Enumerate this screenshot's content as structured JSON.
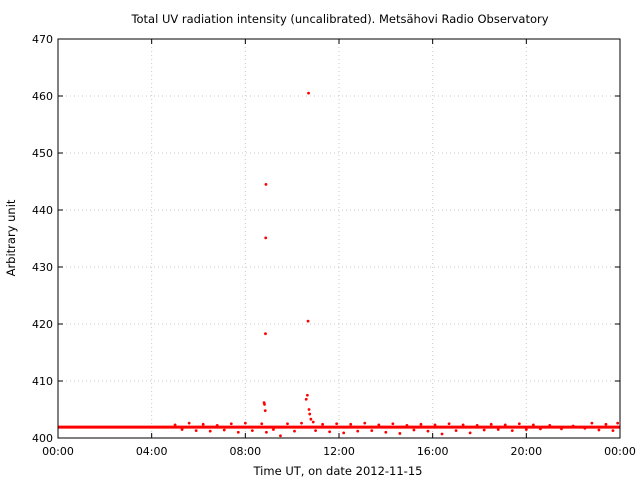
{
  "chart_data": {
    "type": "scatter",
    "title": "Total UV radiation intensity (uncalibrated). Metsähovi Radio Observatory",
    "xlabel": "Time UT, on date 2012-11-15",
    "ylabel": "Arbitrary unit",
    "x_unit": "hours UT",
    "xlim": [
      0,
      24
    ],
    "ylim": [
      400,
      470
    ],
    "x_ticks": [
      {
        "value": 0,
        "label": "00:00"
      },
      {
        "value": 4,
        "label": "04:00"
      },
      {
        "value": 8,
        "label": "08:00"
      },
      {
        "value": 12,
        "label": "12:00"
      },
      {
        "value": 16,
        "label": "16:00"
      },
      {
        "value": 20,
        "label": "20:00"
      },
      {
        "value": 24,
        "label": "00:00"
      }
    ],
    "y_ticks": [
      {
        "value": 400,
        "label": "400"
      },
      {
        "value": 410,
        "label": "410"
      },
      {
        "value": 420,
        "label": "420"
      },
      {
        "value": 430,
        "label": "430"
      },
      {
        "value": 440,
        "label": "440"
      },
      {
        "value": 450,
        "label": "450"
      },
      {
        "value": 460,
        "label": "460"
      },
      {
        "value": 470,
        "label": "470"
      }
    ],
    "grid": true,
    "marker_color": "#ff0000",
    "baseline": {
      "value": 401.9,
      "x_range": [
        0,
        24
      ]
    },
    "series": [
      {
        "values": [
          {
            "x": 5.0,
            "y": 402.3
          },
          {
            "x": 5.3,
            "y": 401.5
          },
          {
            "x": 5.6,
            "y": 402.6
          },
          {
            "x": 5.9,
            "y": 401.3
          },
          {
            "x": 6.2,
            "y": 402.4
          },
          {
            "x": 6.5,
            "y": 401.2
          },
          {
            "x": 6.8,
            "y": 402.2
          },
          {
            "x": 7.1,
            "y": 401.4
          },
          {
            "x": 7.4,
            "y": 402.5
          },
          {
            "x": 7.7,
            "y": 401.0
          },
          {
            "x": 8.0,
            "y": 402.6
          },
          {
            "x": 8.3,
            "y": 401.3
          },
          {
            "x": 8.7,
            "y": 402.5
          },
          {
            "x": 8.8,
            "y": 406.2
          },
          {
            "x": 8.82,
            "y": 405.9
          },
          {
            "x": 8.85,
            "y": 404.8
          },
          {
            "x": 8.86,
            "y": 418.3
          },
          {
            "x": 8.87,
            "y": 435.1
          },
          {
            "x": 8.88,
            "y": 444.5
          },
          {
            "x": 8.9,
            "y": 401.0
          },
          {
            "x": 9.2,
            "y": 401.5
          },
          {
            "x": 9.5,
            "y": 400.4
          },
          {
            "x": 9.8,
            "y": 402.5
          },
          {
            "x": 10.1,
            "y": 401.2
          },
          {
            "x": 10.4,
            "y": 402.6
          },
          {
            "x": 10.6,
            "y": 406.8
          },
          {
            "x": 10.65,
            "y": 407.5
          },
          {
            "x": 10.68,
            "y": 420.5
          },
          {
            "x": 10.7,
            "y": 460.5
          },
          {
            "x": 10.72,
            "y": 405.0
          },
          {
            "x": 10.75,
            "y": 404.2
          },
          {
            "x": 10.8,
            "y": 403.3
          },
          {
            "x": 10.9,
            "y": 402.8
          },
          {
            "x": 11.0,
            "y": 401.3
          },
          {
            "x": 11.3,
            "y": 402.4
          },
          {
            "x": 11.6,
            "y": 401.1
          },
          {
            "x": 11.9,
            "y": 402.5
          },
          {
            "x": 12.2,
            "y": 400.9
          },
          {
            "x": 12.5,
            "y": 402.4
          },
          {
            "x": 12.8,
            "y": 401.2
          },
          {
            "x": 13.1,
            "y": 402.6
          },
          {
            "x": 13.4,
            "y": 401.3
          },
          {
            "x": 13.7,
            "y": 402.3
          },
          {
            "x": 14.0,
            "y": 401.0
          },
          {
            "x": 14.3,
            "y": 402.5
          },
          {
            "x": 14.6,
            "y": 400.8
          },
          {
            "x": 14.9,
            "y": 402.2
          },
          {
            "x": 15.2,
            "y": 401.4
          },
          {
            "x": 15.5,
            "y": 402.4
          },
          {
            "x": 15.8,
            "y": 401.2
          },
          {
            "x": 16.1,
            "y": 402.3
          },
          {
            "x": 16.4,
            "y": 400.7
          },
          {
            "x": 16.7,
            "y": 402.5
          },
          {
            "x": 17.0,
            "y": 401.3
          },
          {
            "x": 17.3,
            "y": 402.3
          },
          {
            "x": 17.6,
            "y": 400.9
          },
          {
            "x": 17.9,
            "y": 402.2
          },
          {
            "x": 18.2,
            "y": 401.4
          },
          {
            "x": 18.5,
            "y": 402.4
          },
          {
            "x": 18.8,
            "y": 401.5
          },
          {
            "x": 19.1,
            "y": 402.3
          },
          {
            "x": 19.4,
            "y": 401.3
          },
          {
            "x": 19.7,
            "y": 402.5
          },
          {
            "x": 20.0,
            "y": 401.5
          },
          {
            "x": 20.3,
            "y": 402.3
          },
          {
            "x": 20.6,
            "y": 401.6
          },
          {
            "x": 21.0,
            "y": 402.2
          },
          {
            "x": 21.5,
            "y": 401.6
          },
          {
            "x": 22.0,
            "y": 402.1
          },
          {
            "x": 22.5,
            "y": 401.7
          },
          {
            "x": 22.8,
            "y": 402.6
          },
          {
            "x": 23.1,
            "y": 401.4
          },
          {
            "x": 23.4,
            "y": 402.4
          },
          {
            "x": 23.7,
            "y": 401.3
          },
          {
            "x": 23.9,
            "y": 402.6
          }
        ]
      }
    ]
  }
}
